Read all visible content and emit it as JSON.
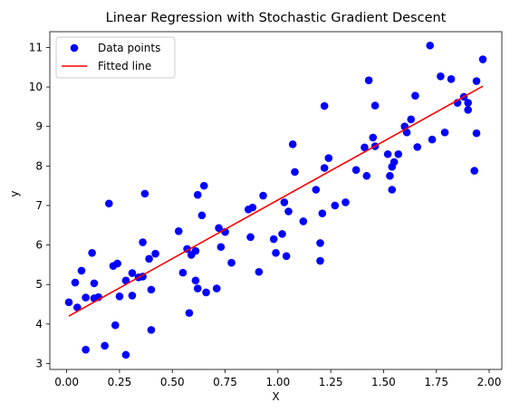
{
  "chart_data": {
    "type": "scatter",
    "title": "Linear Regression with Stochastic Gradient Descent",
    "xlabel": "X",
    "ylabel": "y",
    "xlim": [
      -0.08,
      2.06
    ],
    "ylim": [
      2.85,
      11.4
    ],
    "xticks": [
      "0.00",
      "0.25",
      "0.50",
      "0.75",
      "1.00",
      "1.25",
      "1.50",
      "1.75",
      "2.00"
    ],
    "yticks": [
      "3",
      "4",
      "5",
      "6",
      "7",
      "8",
      "9",
      "10",
      "11"
    ],
    "grid": false,
    "legend_position": "top-left",
    "series": [
      {
        "name": "Data points",
        "kind": "scatter",
        "color": "#0000ff",
        "points": [
          [
            0.01,
            4.55
          ],
          [
            0.04,
            5.05
          ],
          [
            0.05,
            4.42
          ],
          [
            0.07,
            5.35
          ],
          [
            0.09,
            3.35
          ],
          [
            0.09,
            4.67
          ],
          [
            0.12,
            5.8
          ],
          [
            0.13,
            5.03
          ],
          [
            0.13,
            4.65
          ],
          [
            0.15,
            4.68
          ],
          [
            0.18,
            3.45
          ],
          [
            0.2,
            7.05
          ],
          [
            0.22,
            5.47
          ],
          [
            0.23,
            3.97
          ],
          [
            0.24,
            5.53
          ],
          [
            0.25,
            4.7
          ],
          [
            0.28,
            5.1
          ],
          [
            0.28,
            3.22
          ],
          [
            0.31,
            4.72
          ],
          [
            0.31,
            5.29
          ],
          [
            0.34,
            5.18
          ],
          [
            0.36,
            5.2
          ],
          [
            0.36,
            6.07
          ],
          [
            0.37,
            7.3
          ],
          [
            0.39,
            5.65
          ],
          [
            0.4,
            3.85
          ],
          [
            0.4,
            4.87
          ],
          [
            0.42,
            5.78
          ],
          [
            0.53,
            6.35
          ],
          [
            0.55,
            5.3
          ],
          [
            0.57,
            5.9
          ],
          [
            0.58,
            4.28
          ],
          [
            0.59,
            5.75
          ],
          [
            0.61,
            5.1
          ],
          [
            0.61,
            5.85
          ],
          [
            0.62,
            7.27
          ],
          [
            0.62,
            4.9
          ],
          [
            0.64,
            6.75
          ],
          [
            0.65,
            7.5
          ],
          [
            0.66,
            4.8
          ],
          [
            0.71,
            4.9
          ],
          [
            0.72,
            6.43
          ],
          [
            0.73,
            5.95
          ],
          [
            0.75,
            6.33
          ],
          [
            0.78,
            5.55
          ],
          [
            0.86,
            6.9
          ],
          [
            0.87,
            6.2
          ],
          [
            0.88,
            6.95
          ],
          [
            0.91,
            5.32
          ],
          [
            0.93,
            7.25
          ],
          [
            0.98,
            6.15
          ],
          [
            0.99,
            5.8
          ],
          [
            1.02,
            6.28
          ],
          [
            1.03,
            7.08
          ],
          [
            1.04,
            5.72
          ],
          [
            1.05,
            6.85
          ],
          [
            1.07,
            8.55
          ],
          [
            1.08,
            7.85
          ],
          [
            1.12,
            6.6
          ],
          [
            1.18,
            7.4
          ],
          [
            1.2,
            6.05
          ],
          [
            1.2,
            5.6
          ],
          [
            1.21,
            6.8
          ],
          [
            1.22,
            9.52
          ],
          [
            1.22,
            7.95
          ],
          [
            1.24,
            8.2
          ],
          [
            1.27,
            7.0
          ],
          [
            1.32,
            7.08
          ],
          [
            1.37,
            7.9
          ],
          [
            1.41,
            8.47
          ],
          [
            1.42,
            7.75
          ],
          [
            1.43,
            10.17
          ],
          [
            1.45,
            8.72
          ],
          [
            1.46,
            9.53
          ],
          [
            1.46,
            8.5
          ],
          [
            1.52,
            8.3
          ],
          [
            1.53,
            7.75
          ],
          [
            1.54,
            7.4
          ],
          [
            1.54,
            7.98
          ],
          [
            1.55,
            8.1
          ],
          [
            1.57,
            8.3
          ],
          [
            1.6,
            9.0
          ],
          [
            1.61,
            8.85
          ],
          [
            1.63,
            9.18
          ],
          [
            1.65,
            9.78
          ],
          [
            1.66,
            8.48
          ],
          [
            1.72,
            11.05
          ],
          [
            1.73,
            8.67
          ],
          [
            1.77,
            10.27
          ],
          [
            1.79,
            8.85
          ],
          [
            1.82,
            10.2
          ],
          [
            1.85,
            9.6
          ],
          [
            1.88,
            9.75
          ],
          [
            1.9,
            9.6
          ],
          [
            1.9,
            9.42
          ],
          [
            1.93,
            7.88
          ],
          [
            1.94,
            8.83
          ],
          [
            1.94,
            10.15
          ],
          [
            1.97,
            10.7
          ]
        ]
      },
      {
        "name": "Fitted line",
        "kind": "line",
        "color": "#ff0000",
        "x": [
          0.01,
          1.97
        ],
        "y": [
          4.2,
          10.02
        ]
      }
    ]
  }
}
